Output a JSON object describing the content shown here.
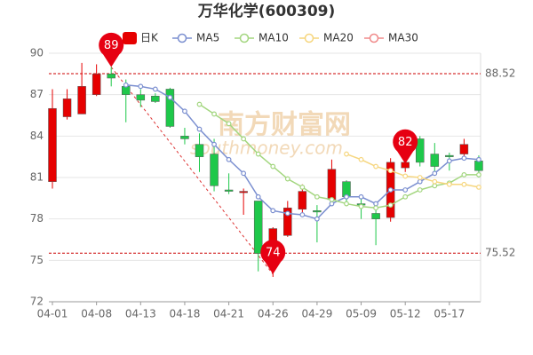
{
  "chart_data": {
    "type": "candlestick",
    "title": "万华化学(600309)",
    "watermark": [
      "南方财富网",
      "southmoney.com"
    ],
    "categories": [
      "04-01",
      null,
      null,
      "04-08",
      null,
      null,
      "04-13",
      null,
      null,
      "04-18",
      null,
      null,
      "04-21",
      null,
      null,
      "04-26",
      null,
      null,
      "04-29",
      null,
      null,
      "05-09",
      null,
      null,
      "05-12",
      null,
      null,
      "05-17",
      null,
      null
    ],
    "candle_name": "日K",
    "up_color": "#e60000",
    "down_color": "#1ec84a",
    "open": [
      80.7,
      85.4,
      85.6,
      87.0,
      88.5,
      87.6,
      87.0,
      86.9,
      87.4,
      84.0,
      83.4,
      82.7,
      80.1,
      79.9,
      79.3,
      75.7,
      76.8,
      78.7,
      78.6,
      79.4,
      80.7,
      79.1,
      78.4,
      78.1,
      81.7,
      83.8,
      82.7,
      82.6,
      82.7,
      82.2
    ],
    "high": [
      87.4,
      87.4,
      89.3,
      89.2,
      89.0,
      88.1,
      87.4,
      87.1,
      87.5,
      84.6,
      84.2,
      83.8,
      81.3,
      80.2,
      79.3,
      77.4,
      79.3,
      80.5,
      79.0,
      82.3,
      80.8,
      79.5,
      78.8,
      82.4,
      82.6,
      84.0,
      83.5,
      82.8,
      83.8,
      82.6
    ],
    "low": [
      80.2,
      85.2,
      85.6,
      86.9,
      87.6,
      85.0,
      86.1,
      86.4,
      84.6,
      83.4,
      81.4,
      80.0,
      79.8,
      78.3,
      74.2,
      73.8,
      76.7,
      78.2,
      76.3,
      79.1,
      79.2,
      78.0,
      76.1,
      77.8,
      81.4,
      81.8,
      81.4,
      81.5,
      82.4,
      81.0
    ],
    "close": [
      86.0,
      86.7,
      87.6,
      88.5,
      88.2,
      87.0,
      86.6,
      86.5,
      84.7,
      83.8,
      82.5,
      80.4,
      80.0,
      80.0,
      75.5,
      77.3,
      78.8,
      80.0,
      78.5,
      81.6,
      79.6,
      79.0,
      78.0,
      82.1,
      82.1,
      82.1,
      81.8,
      82.5,
      83.4,
      81.5
    ],
    "series": [
      {
        "name": "MA5",
        "color": "#7b8fd0",
        "values": [
          null,
          null,
          null,
          null,
          null,
          87.7,
          87.6,
          87.4,
          86.8,
          85.8,
          84.5,
          83.4,
          82.3,
          81.3,
          79.6,
          78.6,
          78.4,
          78.3,
          78.0,
          79.1,
          79.6,
          79.6,
          79.1,
          80.1,
          80.1,
          80.7,
          81.3,
          82.2,
          82.4,
          82.3
        ]
      },
      {
        "name": "MA10",
        "color": "#a3d67f",
        "values": [
          null,
          null,
          null,
          null,
          null,
          null,
          null,
          null,
          null,
          null,
          86.3,
          85.6,
          84.9,
          83.8,
          82.7,
          81.8,
          80.9,
          80.3,
          79.6,
          79.4,
          79.1,
          78.9,
          78.8,
          79.0,
          79.6,
          80.1,
          80.4,
          80.6,
          81.2,
          81.2
        ]
      },
      {
        "name": "MA20",
        "color": "#f6d67e",
        "values": [
          null,
          null,
          null,
          null,
          null,
          null,
          null,
          null,
          null,
          null,
          null,
          null,
          null,
          null,
          null,
          null,
          null,
          null,
          null,
          null,
          82.7,
          82.3,
          81.8,
          81.5,
          81.1,
          81.0,
          80.7,
          80.5,
          80.5,
          80.3
        ]
      },
      {
        "name": "MA30",
        "color": "#f08a8a",
        "values": [
          null,
          null,
          null,
          null,
          null,
          null,
          null,
          null,
          null,
          null,
          null,
          null,
          null,
          null,
          null,
          null,
          null,
          null,
          null,
          null,
          null,
          null,
          null,
          null,
          null,
          null,
          null,
          null,
          null,
          null
        ]
      }
    ],
    "ref_lines": [
      {
        "value": 88.52
      },
      {
        "value": 75.52
      }
    ],
    "pins": [
      {
        "index": 4,
        "value": 89
      },
      {
        "index": 15,
        "value": 74
      },
      {
        "index": 24,
        "value": 82
      }
    ],
    "ylim": [
      72,
      90
    ],
    "yticks": [
      72,
      75,
      78,
      81,
      84,
      87,
      90
    ],
    "grid": true
  }
}
